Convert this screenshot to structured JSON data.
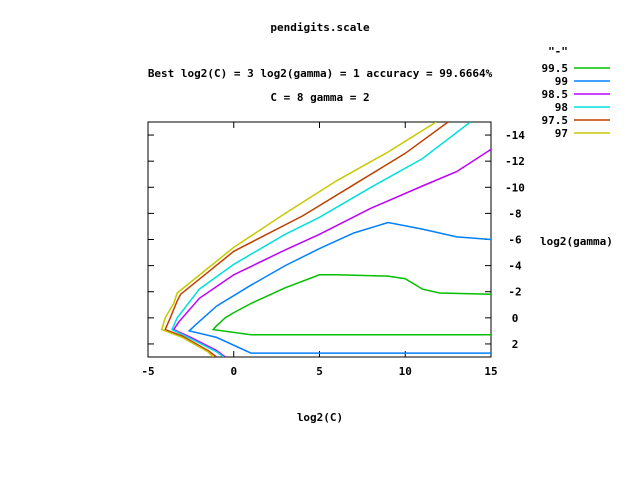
{
  "chart_data": {
    "type": "line",
    "title": "pendigits.scale",
    "subtitle_1": "Best log2(C) = 3  log2(gamma) = 1  accuracy = 99.6664%",
    "subtitle_2": "C = 8  gamma = 2",
    "xlabel": "log2(C)",
    "ylabel": "log2(gamma)",
    "xlim": [
      -5,
      15
    ],
    "ylim": [
      -15,
      3
    ],
    "y_reversed": true,
    "y_axis_side": "right",
    "x_ticks": [
      -5,
      0,
      5,
      10,
      15
    ],
    "y_ticks": [
      -14,
      -12,
      -10,
      -8,
      -6,
      -4,
      -2,
      0,
      2
    ],
    "grid": false,
    "legend_title": "\"-\"",
    "legend_position": "top-right",
    "series": [
      {
        "name": "99.5",
        "color": "#00c000",
        "segments": [
          [
            [
              15,
              -1.8
            ],
            [
              12,
              -1.9
            ],
            [
              11,
              -2.2
            ],
            [
              10,
              -3
            ],
            [
              9,
              -3.2
            ],
            [
              6,
              -3.3
            ],
            [
              5,
              -3.3
            ],
            [
              3,
              -2.3
            ],
            [
              1,
              -1.1
            ],
            [
              0,
              -0.4
            ],
            [
              -0.5,
              0
            ],
            [
              -1,
              0.6
            ],
            [
              -1.2,
              0.9
            ],
            [
              1,
              1.3
            ],
            [
              5,
              1.3
            ],
            [
              10,
              1.3
            ],
            [
              15,
              1.3
            ]
          ]
        ]
      },
      {
        "name": "99",
        "color": "#0080ff",
        "segments": [
          [
            [
              15,
              -6
            ],
            [
              13,
              -6.2
            ],
            [
              11,
              -6.8
            ],
            [
              9,
              -7.3
            ],
            [
              7,
              -6.5
            ],
            [
              5,
              -5.3
            ],
            [
              3,
              -4
            ],
            [
              1,
              -2.5
            ],
            [
              -1,
              -0.9
            ],
            [
              -2.2,
              0.5
            ],
            [
              -2.6,
              1
            ],
            [
              -1,
              1.5
            ],
            [
              1,
              2.7
            ],
            [
              5,
              2.7
            ],
            [
              10,
              2.7
            ],
            [
              15,
              2.7
            ]
          ]
        ]
      },
      {
        "name": "98.5",
        "color": "#c000ff",
        "segments": [
          [
            [
              15,
              -12.9
            ],
            [
              13,
              -11.2
            ],
            [
              11,
              -10.1
            ],
            [
              8,
              -8.4
            ],
            [
              5,
              -6.4
            ],
            [
              3,
              -5.2
            ],
            [
              0,
              -3.3
            ],
            [
              -2,
              -1.5
            ],
            [
              -3.2,
              0.3
            ],
            [
              -3.5,
              0.9
            ],
            [
              -2.5,
              1.5
            ],
            [
              -1,
              2.5
            ],
            [
              -0.5,
              3
            ]
          ]
        ]
      },
      {
        "name": "98",
        "color": "#00e0e0",
        "segments": [
          [
            [
              13.8,
              -15
            ],
            [
              11,
              -12.2
            ],
            [
              8,
              -10
            ],
            [
              5,
              -7.7
            ],
            [
              3,
              -6.4
            ],
            [
              0,
              -4.1
            ],
            [
              -2,
              -2.2
            ],
            [
              -3.3,
              0
            ],
            [
              -3.6,
              0.9
            ],
            [
              -2.5,
              1.6
            ],
            [
              -1,
              2.6
            ],
            [
              -0.6,
              3
            ]
          ]
        ]
      },
      {
        "name": "97.5",
        "color": "#c04000",
        "segments": [
          [
            [
              12.5,
              -15
            ],
            [
              10,
              -12.6
            ],
            [
              7,
              -10.2
            ],
            [
              4,
              -7.8
            ],
            [
              0,
              -5.1
            ],
            [
              -3.1,
              -1.8
            ],
            [
              -3.3,
              -1.3
            ],
            [
              -3.7,
              0
            ],
            [
              -4,
              0.9
            ],
            [
              -3,
              1.4
            ],
            [
              -1.5,
              2.5
            ],
            [
              -1,
              3
            ]
          ]
        ]
      },
      {
        "name": "97",
        "color": "#c8c800",
        "segments": [
          [
            [
              11.8,
              -15
            ],
            [
              9,
              -12.7
            ],
            [
              6,
              -10.5
            ],
            [
              3,
              -8
            ],
            [
              0,
              -5.4
            ],
            [
              -3.3,
              -1.9
            ],
            [
              -3.5,
              -1.1
            ],
            [
              -4,
              0
            ],
            [
              -4.2,
              0.9
            ],
            [
              -3,
              1.5
            ],
            [
              -1.5,
              2.6
            ],
            [
              -1.2,
              3
            ]
          ]
        ]
      }
    ]
  }
}
